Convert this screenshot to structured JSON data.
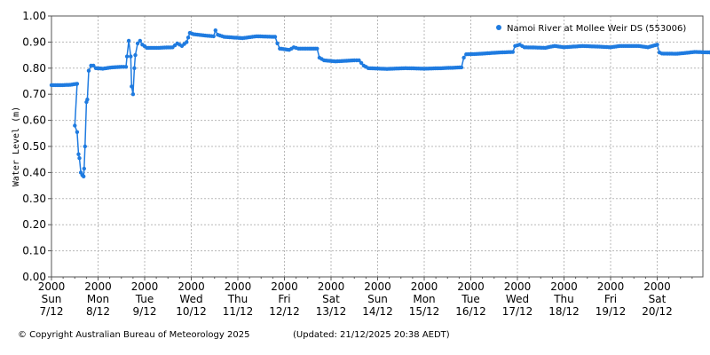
{
  "chart_data": {
    "type": "line",
    "ylabel": "Water Level (m)",
    "ylim": [
      0.0,
      1.0
    ],
    "yticks": [
      "0.00",
      "0.10",
      "0.20",
      "0.30",
      "0.40",
      "0.50",
      "0.60",
      "0.70",
      "0.80",
      "0.90",
      "1.00"
    ],
    "xlim_days": 14.65,
    "xticks": [
      {
        "time": "2000",
        "day": "Sun",
        "date": "7/12"
      },
      {
        "time": "2000",
        "day": "Mon",
        "date": "8/12"
      },
      {
        "time": "2000",
        "day": "Tue",
        "date": "9/12"
      },
      {
        "time": "2000",
        "day": "Wed",
        "date": "10/12"
      },
      {
        "time": "2000",
        "day": "Thu",
        "date": "11/12"
      },
      {
        "time": "2000",
        "day": "Fri",
        "date": "12/12"
      },
      {
        "time": "2000",
        "day": "Sat",
        "date": "13/12"
      },
      {
        "time": "2000",
        "day": "Sun",
        "date": "14/12"
      },
      {
        "time": "2000",
        "day": "Mon",
        "date": "15/12"
      },
      {
        "time": "2000",
        "day": "Tue",
        "date": "16/12"
      },
      {
        "time": "2000",
        "day": "Wed",
        "date": "17/12"
      },
      {
        "time": "2000",
        "day": "Thu",
        "date": "18/12"
      },
      {
        "time": "2000",
        "day": "Fri",
        "date": "19/12"
      },
      {
        "time": "2000",
        "day": "Sat",
        "date": "20/12"
      }
    ],
    "grid": true,
    "legend_position": "top-right",
    "series": [
      {
        "name": "Namoi River at Mollee Weir DS (553006)",
        "color": "#1f7be0",
        "points": [
          [
            0.0,
            0.735
          ],
          [
            0.2,
            0.735
          ],
          [
            0.4,
            0.736
          ],
          [
            0.55,
            0.74
          ],
          [
            0.5,
            0.58
          ],
          [
            0.55,
            0.555
          ],
          [
            0.58,
            0.47
          ],
          [
            0.6,
            0.455
          ],
          [
            0.63,
            0.4
          ],
          [
            0.66,
            0.39
          ],
          [
            0.69,
            0.385
          ],
          [
            0.7,
            0.415
          ],
          [
            0.72,
            0.5
          ],
          [
            0.75,
            0.67
          ],
          [
            0.77,
            0.68
          ],
          [
            0.8,
            0.79
          ],
          [
            0.85,
            0.81
          ],
          [
            0.9,
            0.81
          ],
          [
            0.95,
            0.8
          ],
          [
            1.1,
            0.798
          ],
          [
            1.3,
            0.803
          ],
          [
            1.5,
            0.805
          ],
          [
            1.6,
            0.805
          ],
          [
            1.62,
            0.845
          ],
          [
            1.66,
            0.905
          ],
          [
            1.7,
            0.845
          ],
          [
            1.72,
            0.73
          ],
          [
            1.75,
            0.7
          ],
          [
            1.78,
            0.8
          ],
          [
            1.8,
            0.85
          ],
          [
            1.85,
            0.895
          ],
          [
            1.9,
            0.905
          ],
          [
            1.95,
            0.89
          ],
          [
            2.05,
            0.878
          ],
          [
            2.3,
            0.878
          ],
          [
            2.6,
            0.88
          ],
          [
            2.7,
            0.895
          ],
          [
            2.8,
            0.885
          ],
          [
            2.9,
            0.9
          ],
          [
            2.97,
            0.935
          ],
          [
            3.05,
            0.93
          ],
          [
            3.3,
            0.925
          ],
          [
            3.48,
            0.922
          ],
          [
            3.52,
            0.945
          ],
          [
            3.57,
            0.928
          ],
          [
            3.7,
            0.92
          ],
          [
            4.1,
            0.915
          ],
          [
            4.4,
            0.922
          ],
          [
            4.8,
            0.92
          ],
          [
            4.85,
            0.895
          ],
          [
            4.9,
            0.875
          ],
          [
            5.1,
            0.87
          ],
          [
            5.2,
            0.88
          ],
          [
            5.3,
            0.875
          ],
          [
            5.7,
            0.875
          ],
          [
            5.75,
            0.84
          ],
          [
            5.85,
            0.83
          ],
          [
            6.1,
            0.826
          ],
          [
            6.5,
            0.83
          ],
          [
            6.6,
            0.83
          ],
          [
            6.7,
            0.81
          ],
          [
            6.8,
            0.8
          ],
          [
            7.2,
            0.797
          ],
          [
            7.6,
            0.8
          ],
          [
            8.0,
            0.798
          ],
          [
            8.4,
            0.8
          ],
          [
            8.8,
            0.803
          ],
          [
            8.85,
            0.84
          ],
          [
            8.9,
            0.853
          ],
          [
            9.2,
            0.855
          ],
          [
            9.6,
            0.86
          ],
          [
            9.9,
            0.862
          ],
          [
            9.95,
            0.885
          ],
          [
            10.05,
            0.89
          ],
          [
            10.15,
            0.88
          ],
          [
            10.6,
            0.878
          ],
          [
            10.8,
            0.885
          ],
          [
            11.0,
            0.88
          ],
          [
            11.4,
            0.885
          ],
          [
            11.8,
            0.882
          ],
          [
            12.0,
            0.88
          ],
          [
            12.2,
            0.885
          ],
          [
            12.6,
            0.885
          ],
          [
            12.8,
            0.88
          ],
          [
            13.0,
            0.89
          ],
          [
            13.05,
            0.86
          ],
          [
            13.1,
            0.856
          ],
          [
            13.4,
            0.855
          ],
          [
            13.6,
            0.858
          ],
          [
            13.8,
            0.862
          ],
          [
            14.2,
            0.86
          ],
          [
            14.65,
            0.855
          ]
        ]
      }
    ]
  },
  "footer": {
    "copyright": "© Copyright Australian Bureau of Meteorology 2025",
    "updated": "(Updated: 21/12/2025 20:38 AEDT)"
  }
}
